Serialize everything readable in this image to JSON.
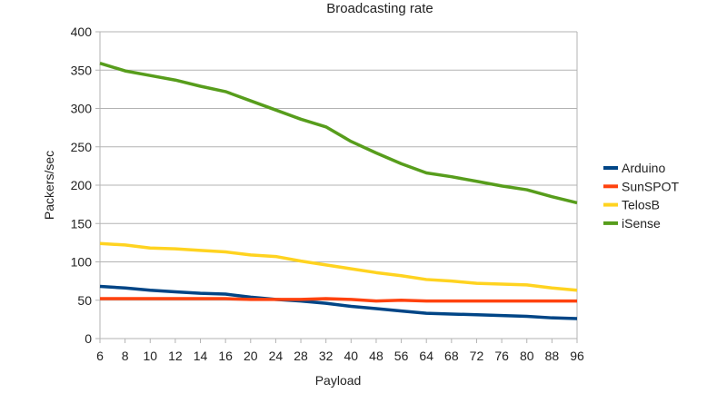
{
  "chart_data": {
    "type": "line",
    "title": "Broadcasting rate",
    "xlabel": "Payload",
    "ylabel": "Packers/sec",
    "ylim": [
      0,
      400
    ],
    "yticks": [
      0,
      50,
      100,
      150,
      200,
      250,
      300,
      350,
      400
    ],
    "grid": true,
    "legend_position": "right",
    "categories": [
      "6",
      "8",
      "10",
      "12",
      "14",
      "16",
      "20",
      "24",
      "28",
      "32",
      "40",
      "48",
      "56",
      "64",
      "68",
      "72",
      "76",
      "80",
      "88",
      "96"
    ],
    "series": [
      {
        "name": "Arduino",
        "color": "#004586",
        "values": [
          68,
          66,
          63,
          61,
          59,
          58,
          54,
          51,
          49,
          46,
          42,
          39,
          36,
          33,
          32,
          31,
          30,
          29,
          27,
          26
        ]
      },
      {
        "name": "SunSPOT",
        "color": "#ff420e",
        "values": [
          52,
          52,
          52,
          52,
          52,
          52,
          51,
          51,
          51,
          52,
          51,
          49,
          50,
          49,
          49,
          49,
          49,
          49,
          49,
          49
        ]
      },
      {
        "name": "TelosB",
        "color": "#ffd320",
        "values": [
          124,
          122,
          118,
          117,
          115,
          113,
          109,
          107,
          101,
          96,
          91,
          86,
          82,
          77,
          75,
          72,
          71,
          70,
          66,
          63
        ]
      },
      {
        "name": "iSense",
        "color": "#579d1c",
        "values": [
          359,
          349,
          343,
          337,
          329,
          322,
          310,
          298,
          286,
          276,
          257,
          242,
          228,
          216,
          211,
          205,
          199,
          194,
          185,
          177
        ]
      }
    ]
  }
}
